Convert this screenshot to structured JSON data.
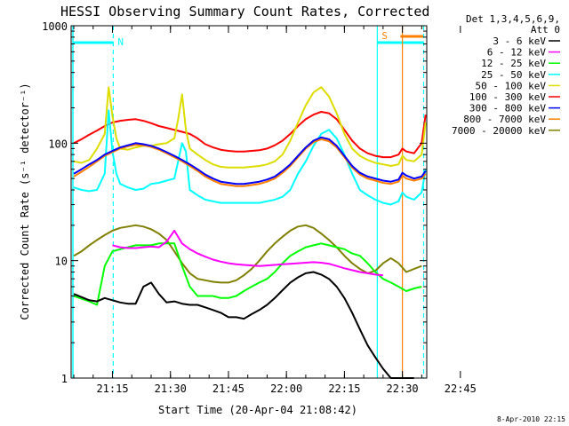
{
  "chart_data": {
    "type": "line",
    "title": "HESSI Observing Summary Count Rates, Corrected",
    "xlabel": "Start Time (20-Apr-04 21:08:42)",
    "ylabel": "Corrected Count Rate (s⁻¹ detector⁻¹)",
    "yscale": "log",
    "ylim": [
      1,
      1000
    ],
    "xlim_minutes": [
      4.3,
      96.3
    ],
    "x_tick_labels": [
      "21:15",
      "21:30",
      "21:45",
      "22:00",
      "22:15",
      "22:30",
      "22:45"
    ],
    "x_tick_minutes": [
      15,
      30,
      45,
      60,
      75,
      90,
      105
    ],
    "y_tick_labels": [
      "1",
      "10",
      "100",
      "1000"
    ],
    "y_tick_values": [
      1,
      10,
      100,
      1000
    ],
    "legend_header": [
      "Det 1,3,4,5,6,9,",
      "Att 0"
    ],
    "legend_position": "right",
    "footer": "8-Apr-2010 22:15",
    "series": [
      {
        "name": "3 - 6 keV",
        "color": "#000000",
        "x": [
          5,
          9,
          11,
          13,
          15,
          17,
          19,
          21,
          23,
          25,
          27,
          29,
          31,
          33,
          35,
          37,
          39,
          41,
          43,
          45,
          47,
          49,
          51,
          53,
          55,
          57,
          59,
          61,
          63,
          65,
          67,
          69,
          71,
          73,
          75,
          77,
          79,
          81,
          83,
          85,
          87,
          89,
          91,
          93
        ],
        "y": [
          5.2,
          4.6,
          4.5,
          4.8,
          4.6,
          4.4,
          4.3,
          4.3,
          6,
          6.5,
          5.2,
          4.4,
          4.5,
          4.3,
          4.2,
          4.2,
          4,
          3.8,
          3.6,
          3.3,
          3.3,
          3.2,
          3.5,
          3.8,
          4.2,
          4.8,
          5.6,
          6.5,
          7.2,
          7.8,
          8,
          7.6,
          7,
          6,
          4.8,
          3.6,
          2.6,
          1.9,
          1.5,
          1.2,
          1,
          0.85,
          0.8,
          0.8
        ]
      },
      {
        "name": "6 - 12 keV",
        "color": "#ff00ff",
        "x": [
          15,
          17,
          19,
          21,
          23,
          25,
          27,
          29,
          31,
          33,
          35,
          37,
          39,
          41,
          43,
          45,
          47,
          49,
          51,
          53,
          55,
          57,
          59,
          61,
          63,
          65,
          67,
          69,
          71,
          73,
          75,
          77,
          79,
          81,
          83,
          85
        ],
        "y": [
          13.5,
          13,
          12.8,
          12.8,
          13,
          13.2,
          13,
          14.5,
          18,
          14,
          12.5,
          11.5,
          10.8,
          10.2,
          9.8,
          9.5,
          9.3,
          9.2,
          9.1,
          9,
          9.1,
          9.2,
          9.3,
          9.4,
          9.5,
          9.6,
          9.7,
          9.6,
          9.4,
          9,
          8.6,
          8.3,
          8,
          7.8,
          7.6,
          7.5
        ]
      },
      {
        "name": "12 - 25 keV",
        "color": "#00ff00",
        "x": [
          5,
          9,
          11,
          13,
          15,
          17,
          19,
          21,
          23,
          25,
          27,
          29,
          31,
          33,
          35,
          37,
          39,
          41,
          43,
          45,
          47,
          49,
          51,
          53,
          55,
          57,
          59,
          61,
          63,
          65,
          67,
          69,
          71,
          73,
          75,
          77,
          79,
          81,
          83,
          85,
          87,
          89,
          91,
          93,
          95
        ],
        "y": [
          5,
          4.5,
          4.2,
          9,
          12,
          12.5,
          13,
          13.5,
          13.5,
          13.5,
          14,
          14,
          14,
          9,
          6,
          5,
          5,
          5,
          4.8,
          4.8,
          5,
          5.5,
          6,
          6.5,
          7,
          8,
          9.5,
          11,
          12,
          13,
          13.5,
          14,
          13.5,
          13,
          12.5,
          11.5,
          11,
          9.5,
          8,
          7,
          6.5,
          6,
          5.5,
          5.8,
          6
        ]
      },
      {
        "name": "25 - 50 keV",
        "color": "#00ffff",
        "x": [
          5,
          7,
          9,
          11,
          13,
          14,
          15,
          16,
          17,
          19,
          21,
          23,
          25,
          27,
          29,
          31,
          33,
          34,
          35,
          37,
          39,
          41,
          43,
          45,
          47,
          49,
          51,
          53,
          55,
          57,
          59,
          61,
          63,
          65,
          67,
          69,
          71,
          73,
          75,
          77,
          79,
          81,
          83,
          85,
          87,
          89,
          90,
          91,
          93,
          95,
          96
        ],
        "y": [
          42,
          40,
          39,
          40,
          55,
          190,
          85,
          55,
          45,
          42,
          40,
          41,
          45,
          46,
          48,
          50,
          100,
          85,
          40,
          36,
          33,
          32,
          31,
          31,
          31,
          31,
          31,
          31,
          32,
          33,
          35,
          40,
          55,
          70,
          95,
          120,
          130,
          110,
          80,
          55,
          40,
          36,
          33,
          31,
          30,
          32,
          38,
          35,
          33,
          38,
          60
        ]
      },
      {
        "name": "50 - 100 keV",
        "color": "#dddd00",
        "x": [
          5,
          7,
          9,
          11,
          13,
          14,
          15,
          16,
          17,
          19,
          21,
          23,
          25,
          27,
          29,
          31,
          32,
          33,
          34,
          35,
          37,
          39,
          41,
          43,
          45,
          47,
          49,
          51,
          53,
          55,
          57,
          59,
          61,
          63,
          65,
          67,
          69,
          71,
          73,
          75,
          77,
          79,
          81,
          83,
          85,
          87,
          89,
          90,
          91,
          93,
          95,
          96
        ],
        "y": [
          70,
          68,
          72,
          90,
          120,
          300,
          170,
          110,
          90,
          88,
          92,
          95,
          95,
          98,
          100,
          110,
          160,
          260,
          130,
          90,
          80,
          72,
          66,
          63,
          62,
          62,
          62,
          63,
          64,
          66,
          70,
          80,
          105,
          150,
          210,
          270,
          300,
          250,
          180,
          120,
          90,
          78,
          72,
          68,
          66,
          64,
          66,
          78,
          72,
          70,
          80,
          150
        ]
      },
      {
        "name": "100 - 300 keV",
        "color": "#ff0000",
        "x": [
          5,
          7,
          9,
          11,
          13,
          15,
          17,
          19,
          21,
          23,
          25,
          27,
          29,
          31,
          33,
          35,
          37,
          39,
          41,
          43,
          45,
          47,
          49,
          51,
          53,
          55,
          57,
          59,
          61,
          63,
          65,
          67,
          69,
          71,
          73,
          75,
          77,
          79,
          81,
          83,
          85,
          87,
          89,
          90,
          91,
          93,
          95,
          96
        ],
        "y": [
          100,
          108,
          118,
          128,
          140,
          150,
          155,
          158,
          160,
          155,
          148,
          140,
          135,
          130,
          125,
          120,
          110,
          98,
          92,
          88,
          86,
          85,
          85,
          86,
          87,
          90,
          96,
          105,
          120,
          140,
          160,
          175,
          185,
          180,
          160,
          130,
          105,
          90,
          82,
          78,
          76,
          76,
          80,
          90,
          85,
          82,
          100,
          175
        ]
      },
      {
        "name": "300 - 800 keV",
        "color": "#0000ff",
        "x": [
          5,
          7,
          9,
          11,
          13,
          15,
          17,
          19,
          21,
          23,
          25,
          27,
          29,
          31,
          33,
          35,
          37,
          39,
          41,
          43,
          45,
          47,
          49,
          51,
          53,
          55,
          57,
          59,
          61,
          63,
          65,
          67,
          69,
          71,
          73,
          75,
          77,
          79,
          81,
          83,
          85,
          87,
          89,
          90,
          91,
          93,
          95,
          96
        ],
        "y": [
          55,
          60,
          66,
          72,
          80,
          86,
          92,
          96,
          100,
          98,
          95,
          90,
          84,
          78,
          72,
          66,
          60,
          54,
          50,
          47,
          46,
          45,
          45,
          46,
          47,
          49,
          52,
          58,
          66,
          78,
          92,
          105,
          112,
          108,
          95,
          78,
          64,
          56,
          52,
          50,
          48,
          47,
          49,
          56,
          53,
          50,
          52,
          58
        ]
      },
      {
        "name": "800 - 7000 keV",
        "color": "#ff8000",
        "x": [
          5,
          7,
          9,
          11,
          13,
          15,
          17,
          19,
          21,
          23,
          25,
          27,
          29,
          31,
          33,
          35,
          37,
          39,
          41,
          43,
          45,
          47,
          49,
          51,
          53,
          55,
          57,
          59,
          61,
          63,
          65,
          67,
          69,
          71,
          73,
          75,
          77,
          79,
          81,
          83,
          85,
          87,
          89,
          90,
          91,
          93,
          95,
          96
        ],
        "y": [
          52,
          57,
          63,
          70,
          78,
          84,
          90,
          94,
          97,
          96,
          93,
          88,
          82,
          76,
          70,
          64,
          58,
          52,
          48,
          45,
          44,
          43,
          43,
          44,
          45,
          47,
          50,
          56,
          64,
          76,
          90,
          102,
          108,
          104,
          92,
          76,
          62,
          54,
          50,
          48,
          46,
          45,
          47,
          53,
          50,
          48,
          50,
          55
        ]
      },
      {
        "name": "7000 - 20000 keV",
        "color": "#808000",
        "x": [
          5,
          7,
          9,
          11,
          13,
          15,
          17,
          19,
          21,
          23,
          25,
          27,
          29,
          31,
          33,
          35,
          37,
          39,
          41,
          43,
          45,
          47,
          49,
          51,
          53,
          55,
          57,
          59,
          61,
          63,
          65,
          67,
          69,
          71,
          73,
          75,
          77,
          79,
          81,
          83,
          85,
          87,
          89,
          91,
          93,
          95
        ],
        "y": [
          11,
          12,
          13.5,
          15,
          16.5,
          18,
          19,
          19.5,
          20,
          19.5,
          18.5,
          17,
          15,
          12,
          9.5,
          7.8,
          7,
          6.8,
          6.6,
          6.5,
          6.5,
          6.8,
          7.5,
          8.5,
          10,
          12,
          14,
          16,
          18,
          19.5,
          20,
          19,
          17,
          15,
          13,
          11,
          9.5,
          8.5,
          7.8,
          8.2,
          9.5,
          10.5,
          9.5,
          8,
          8.5,
          9
        ]
      }
    ],
    "annotations": {
      "night_label": "N",
      "saa_label": "S",
      "night_bar": [
        4.3,
        15.2
      ],
      "saa_bar": [
        83.5,
        95.5
      ],
      "dashed_verticals": [
        15.2,
        95.5
      ],
      "solid_verticals": [
        83.5,
        90
      ],
      "orange_bar": [
        89.5,
        95.5
      ]
    }
  }
}
